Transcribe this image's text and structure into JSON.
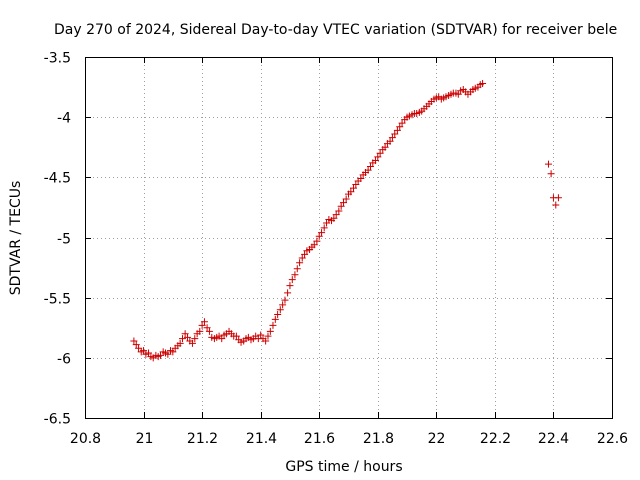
{
  "chart_data": {
    "type": "scatter",
    "title": "Day 270 of 2024, Sidereal Day-to-day VTEC variation (SDTVAR) for receiver bele",
    "xlabel": "GPS time / hours",
    "ylabel": "SDTVAR / TECUs",
    "xlim": [
      20.8,
      22.6
    ],
    "ylim": [
      -6.5,
      -3.5
    ],
    "xticks": [
      "20.8",
      "21",
      "21.2",
      "21.4",
      "21.6",
      "21.8",
      "22",
      "22.2",
      "22.4",
      "22.6"
    ],
    "yticks": [
      "-3.5",
      "-4",
      "-4.5",
      "-5",
      "-5.5",
      "-6",
      "-6.5"
    ],
    "grid": true,
    "marker": "+",
    "color": "#cc0000",
    "points": [
      [
        20.967,
        -5.86
      ],
      [
        20.975,
        -5.89
      ],
      [
        20.983,
        -5.92
      ],
      [
        20.992,
        -5.95
      ],
      [
        21.0,
        -5.94
      ],
      [
        21.008,
        -5.97
      ],
      [
        21.017,
        -5.96
      ],
      [
        21.025,
        -5.99
      ],
      [
        21.033,
        -6.0
      ],
      [
        21.042,
        -5.98
      ],
      [
        21.05,
        -5.99
      ],
      [
        21.058,
        -5.98
      ],
      [
        21.067,
        -5.95
      ],
      [
        21.075,
        -5.96
      ],
      [
        21.083,
        -5.97
      ],
      [
        21.092,
        -5.94
      ],
      [
        21.1,
        -5.95
      ],
      [
        21.108,
        -5.92
      ],
      [
        21.117,
        -5.9
      ],
      [
        21.125,
        -5.88
      ],
      [
        21.133,
        -5.84
      ],
      [
        21.142,
        -5.8
      ],
      [
        21.15,
        -5.83
      ],
      [
        21.158,
        -5.86
      ],
      [
        21.167,
        -5.88
      ],
      [
        21.175,
        -5.84
      ],
      [
        21.183,
        -5.8
      ],
      [
        21.192,
        -5.78
      ],
      [
        21.2,
        -5.73
      ],
      [
        21.208,
        -5.7
      ],
      [
        21.217,
        -5.75
      ],
      [
        21.225,
        -5.78
      ],
      [
        21.233,
        -5.83
      ],
      [
        21.242,
        -5.84
      ],
      [
        21.25,
        -5.83
      ],
      [
        21.258,
        -5.82
      ],
      [
        21.267,
        -5.84
      ],
      [
        21.275,
        -5.81
      ],
      [
        21.283,
        -5.8
      ],
      [
        21.292,
        -5.78
      ],
      [
        21.3,
        -5.8
      ],
      [
        21.308,
        -5.82
      ],
      [
        21.317,
        -5.82
      ],
      [
        21.325,
        -5.85
      ],
      [
        21.333,
        -5.87
      ],
      [
        21.342,
        -5.86
      ],
      [
        21.35,
        -5.84
      ],
      [
        21.358,
        -5.83
      ],
      [
        21.367,
        -5.85
      ],
      [
        21.375,
        -5.84
      ],
      [
        21.383,
        -5.82
      ],
      [
        21.392,
        -5.84
      ],
      [
        21.4,
        -5.81
      ],
      [
        21.408,
        -5.84
      ],
      [
        21.417,
        -5.86
      ],
      [
        21.425,
        -5.82
      ],
      [
        21.433,
        -5.78
      ],
      [
        21.442,
        -5.73
      ],
      [
        21.45,
        -5.68
      ],
      [
        21.458,
        -5.64
      ],
      [
        21.467,
        -5.6
      ],
      [
        21.475,
        -5.56
      ],
      [
        21.483,
        -5.52
      ],
      [
        21.492,
        -5.46
      ],
      [
        21.5,
        -5.4
      ],
      [
        21.508,
        -5.35
      ],
      [
        21.517,
        -5.31
      ],
      [
        21.525,
        -5.26
      ],
      [
        21.533,
        -5.21
      ],
      [
        21.542,
        -5.17
      ],
      [
        21.55,
        -5.14
      ],
      [
        21.558,
        -5.11
      ],
      [
        21.567,
        -5.1
      ],
      [
        21.575,
        -5.08
      ],
      [
        21.583,
        -5.06
      ],
      [
        21.592,
        -5.03
      ],
      [
        21.6,
        -4.99
      ],
      [
        21.608,
        -4.96
      ],
      [
        21.617,
        -4.92
      ],
      [
        21.625,
        -4.88
      ],
      [
        21.633,
        -4.85
      ],
      [
        21.642,
        -4.86
      ],
      [
        21.65,
        -4.84
      ],
      [
        21.658,
        -4.81
      ],
      [
        21.667,
        -4.78
      ],
      [
        21.675,
        -4.74
      ],
      [
        21.683,
        -4.71
      ],
      [
        21.692,
        -4.68
      ],
      [
        21.7,
        -4.64
      ],
      [
        21.708,
        -4.62
      ],
      [
        21.717,
        -4.59
      ],
      [
        21.725,
        -4.56
      ],
      [
        21.733,
        -4.53
      ],
      [
        21.742,
        -4.51
      ],
      [
        21.75,
        -4.48
      ],
      [
        21.758,
        -4.46
      ],
      [
        21.767,
        -4.44
      ],
      [
        21.775,
        -4.41
      ],
      [
        21.783,
        -4.38
      ],
      [
        21.792,
        -4.36
      ],
      [
        21.8,
        -4.33
      ],
      [
        21.808,
        -4.3
      ],
      [
        21.817,
        -4.27
      ],
      [
        21.825,
        -4.25
      ],
      [
        21.833,
        -4.22
      ],
      [
        21.842,
        -4.2
      ],
      [
        21.85,
        -4.17
      ],
      [
        21.858,
        -4.14
      ],
      [
        21.867,
        -4.11
      ],
      [
        21.875,
        -4.08
      ],
      [
        21.883,
        -4.05
      ],
      [
        21.892,
        -4.02
      ],
      [
        21.9,
        -4.0
      ],
      [
        21.908,
        -3.99
      ],
      [
        21.917,
        -3.98
      ],
      [
        21.925,
        -3.97
      ],
      [
        21.933,
        -3.97
      ],
      [
        21.942,
        -3.96
      ],
      [
        21.95,
        -3.95
      ],
      [
        21.958,
        -3.93
      ],
      [
        21.967,
        -3.91
      ],
      [
        21.975,
        -3.89
      ],
      [
        21.983,
        -3.87
      ],
      [
        21.992,
        -3.85
      ],
      [
        22.0,
        -3.84
      ],
      [
        22.008,
        -3.83
      ],
      [
        22.017,
        -3.85
      ],
      [
        22.025,
        -3.84
      ],
      [
        22.033,
        -3.83
      ],
      [
        22.042,
        -3.82
      ],
      [
        22.05,
        -3.81
      ],
      [
        22.058,
        -3.8
      ],
      [
        22.067,
        -3.8
      ],
      [
        22.075,
        -3.81
      ],
      [
        22.083,
        -3.78
      ],
      [
        22.092,
        -3.77
      ],
      [
        22.1,
        -3.79
      ],
      [
        22.108,
        -3.81
      ],
      [
        22.117,
        -3.79
      ],
      [
        22.125,
        -3.77
      ],
      [
        22.133,
        -3.76
      ],
      [
        22.142,
        -3.75
      ],
      [
        22.15,
        -3.73
      ],
      [
        22.158,
        -3.72
      ],
      [
        22.383,
        -4.39
      ],
      [
        22.392,
        -4.47
      ],
      [
        22.4,
        -4.67
      ],
      [
        22.408,
        -4.73
      ],
      [
        22.417,
        -4.67
      ]
    ]
  }
}
